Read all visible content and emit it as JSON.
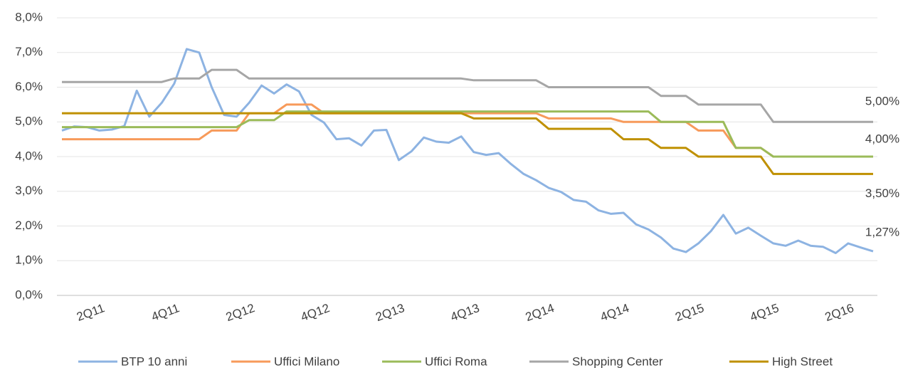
{
  "chart_data": {
    "type": "line",
    "categories": [
      null,
      null,
      null,
      "2Q11",
      null,
      null,
      null,
      null,
      null,
      "4Q11",
      null,
      null,
      null,
      null,
      null,
      "2Q12",
      null,
      null,
      null,
      null,
      null,
      "4Q12",
      null,
      null,
      null,
      null,
      null,
      "2Q13",
      null,
      null,
      null,
      null,
      null,
      "4Q13",
      null,
      null,
      null,
      null,
      null,
      "2Q14",
      null,
      null,
      null,
      null,
      null,
      "4Q14",
      null,
      null,
      null,
      null,
      null,
      "2Q15",
      null,
      null,
      null,
      null,
      null,
      "4Q15",
      null,
      null,
      null,
      null,
      null,
      "2Q16",
      null,
      null
    ],
    "series": [
      {
        "name": "BTP 10 anni",
        "color": "#8db3e2",
        "end_label": "1,27%",
        "values": [
          4.75,
          4.87,
          4.85,
          4.75,
          4.78,
          4.88,
          5.9,
          5.15,
          5.55,
          6.1,
          7.1,
          7.0,
          6.0,
          5.2,
          5.15,
          5.55,
          6.05,
          5.82,
          6.08,
          5.88,
          5.2,
          4.98,
          4.5,
          4.53,
          4.32,
          4.75,
          4.77,
          3.9,
          4.15,
          4.55,
          4.43,
          4.4,
          4.58,
          4.13,
          4.05,
          4.1,
          3.78,
          3.5,
          3.32,
          3.1,
          2.98,
          2.75,
          2.7,
          2.45,
          2.35,
          2.38,
          2.05,
          1.9,
          1.67,
          1.35,
          1.25,
          1.5,
          1.85,
          2.32,
          1.78,
          1.95,
          1.72,
          1.5,
          1.43,
          1.58,
          1.43,
          1.4,
          1.22,
          1.5,
          1.38,
          1.27
        ]
      },
      {
        "name": "Uffici Milano",
        "color": "#f79a5a",
        "values": [
          4.5,
          4.5,
          4.5,
          4.5,
          4.5,
          4.5,
          4.5,
          4.5,
          4.5,
          4.5,
          4.5,
          4.5,
          4.75,
          4.75,
          4.75,
          5.25,
          5.25,
          5.25,
          5.5,
          5.5,
          5.5,
          5.25,
          5.25,
          5.25,
          5.25,
          5.25,
          5.25,
          5.25,
          5.25,
          5.25,
          5.25,
          5.25,
          5.25,
          5.25,
          5.25,
          5.25,
          5.25,
          5.25,
          5.25,
          5.1,
          5.1,
          5.1,
          5.1,
          5.1,
          5.1,
          5.0,
          5.0,
          5.0,
          5.0,
          5.0,
          5.0,
          4.75,
          4.75,
          4.75,
          4.25,
          4.25,
          4.25,
          4.0,
          4.0,
          4.0,
          4.0,
          4.0,
          4.0,
          4.0,
          4.0,
          4.0
        ]
      },
      {
        "name": "Uffici Roma",
        "color": "#9bbb59",
        "end_label": "4,00%",
        "values": [
          4.85,
          4.85,
          4.85,
          4.85,
          4.85,
          4.85,
          4.85,
          4.85,
          4.85,
          4.85,
          4.85,
          4.85,
          4.85,
          4.85,
          4.85,
          5.05,
          5.05,
          5.05,
          5.3,
          5.3,
          5.3,
          5.3,
          5.3,
          5.3,
          5.3,
          5.3,
          5.3,
          5.3,
          5.3,
          5.3,
          5.3,
          5.3,
          5.3,
          5.3,
          5.3,
          5.3,
          5.3,
          5.3,
          5.3,
          5.3,
          5.3,
          5.3,
          5.3,
          5.3,
          5.3,
          5.3,
          5.3,
          5.3,
          5.0,
          5.0,
          5.0,
          5.0,
          5.0,
          5.0,
          4.25,
          4.25,
          4.25,
          4.0,
          4.0,
          4.0,
          4.0,
          4.0,
          4.0,
          4.0,
          4.0,
          4.0
        ]
      },
      {
        "name": "Shopping Center",
        "color": "#a6a6a6",
        "end_label": "5,00%",
        "values": [
          6.15,
          6.15,
          6.15,
          6.15,
          6.15,
          6.15,
          6.15,
          6.15,
          6.15,
          6.25,
          6.25,
          6.25,
          6.5,
          6.5,
          6.5,
          6.25,
          6.25,
          6.25,
          6.25,
          6.25,
          6.25,
          6.25,
          6.25,
          6.25,
          6.25,
          6.25,
          6.25,
          6.25,
          6.25,
          6.25,
          6.25,
          6.25,
          6.25,
          6.2,
          6.2,
          6.2,
          6.2,
          6.2,
          6.2,
          6.0,
          6.0,
          6.0,
          6.0,
          6.0,
          6.0,
          6.0,
          6.0,
          6.0,
          5.75,
          5.75,
          5.75,
          5.5,
          5.5,
          5.5,
          5.5,
          5.5,
          5.5,
          5.0,
          5.0,
          5.0,
          5.0,
          5.0,
          5.0,
          5.0,
          5.0,
          5.0
        ]
      },
      {
        "name": "High Street",
        "color": "#bf9000",
        "end_label": "3,50%",
        "values": [
          5.25,
          5.25,
          5.25,
          5.25,
          5.25,
          5.25,
          5.25,
          5.25,
          5.25,
          5.25,
          5.25,
          5.25,
          5.25,
          5.25,
          5.25,
          5.25,
          5.25,
          5.25,
          5.25,
          5.25,
          5.25,
          5.25,
          5.25,
          5.25,
          5.25,
          5.25,
          5.25,
          5.25,
          5.25,
          5.25,
          5.25,
          5.25,
          5.25,
          5.1,
          5.1,
          5.1,
          5.1,
          5.1,
          5.1,
          4.8,
          4.8,
          4.8,
          4.8,
          4.8,
          4.8,
          4.5,
          4.5,
          4.5,
          4.25,
          4.25,
          4.25,
          4.0,
          4.0,
          4.0,
          4.0,
          4.0,
          4.0,
          3.5,
          3.5,
          3.5,
          3.5,
          3.5,
          3.5,
          3.5,
          3.5,
          3.5
        ]
      }
    ],
    "ylim": [
      0,
      8
    ],
    "yticks": [
      {
        "value": 0,
        "label": "0,0%"
      },
      {
        "value": 1,
        "label": "1,0%"
      },
      {
        "value": 2,
        "label": "2,0%"
      },
      {
        "value": 3,
        "label": "3,0%"
      },
      {
        "value": 4,
        "label": "4,0%"
      },
      {
        "value": 5,
        "label": "5,0%"
      },
      {
        "value": 6,
        "label": "6,0%"
      },
      {
        "value": 7,
        "label": "7,0%"
      },
      {
        "value": 8,
        "label": "8,0%"
      }
    ],
    "grid": true,
    "legend": "bottom"
  }
}
